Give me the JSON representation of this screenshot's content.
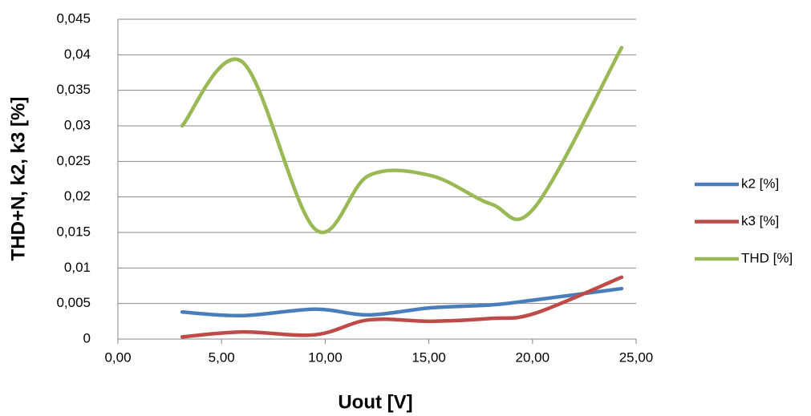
{
  "chart_data": {
    "type": "line",
    "x_label": "Uout [V]",
    "y_label": "THD+N, k2, k3 [%]",
    "x": [
      3.1,
      6.0,
      9.5,
      12.1,
      15.1,
      18.0,
      20.1,
      24.3
    ],
    "series": [
      {
        "name": "k2 [%]",
        "color": "#4a7ebb",
        "values": [
          0.0038,
          0.0033,
          0.0042,
          0.0034,
          0.0044,
          0.0048,
          0.0055,
          0.0071
        ]
      },
      {
        "name": "k3 [%]",
        "color": "#be4b48",
        "values": [
          0.0003,
          0.001,
          0.0006,
          0.0027,
          0.0025,
          0.0029,
          0.0036,
          0.0087
        ]
      },
      {
        "name": "THD [%]",
        "color": "#98b954",
        "values": [
          0.03,
          0.039,
          0.0155,
          0.023,
          0.023,
          0.019,
          0.0185,
          0.041
        ]
      }
    ],
    "xlim": [
      0,
      25
    ],
    "xticks": [
      {
        "value": 0,
        "label": "0,00"
      },
      {
        "value": 5,
        "label": "5,00"
      },
      {
        "value": 10,
        "label": "10,00"
      },
      {
        "value": 15,
        "label": "15,00"
      },
      {
        "value": 20,
        "label": "20,00"
      },
      {
        "value": 25,
        "label": "25,00"
      }
    ],
    "ylim": [
      0,
      0.045
    ],
    "yticks": [
      0,
      {
        "value": 0.005,
        "label": "0,005"
      },
      {
        "value": 0.01,
        "label": "0,01"
      },
      {
        "value": 0.015,
        "label": "0,015"
      },
      {
        "value": 0.02,
        "label": "0,02"
      },
      {
        "value": 0.025,
        "label": "0,025"
      },
      {
        "value": 0.03,
        "label": "0,03"
      },
      {
        "value": 0.035,
        "label": "0,035"
      },
      {
        "value": 0.04,
        "label": "0,04"
      },
      {
        "value": 0.045,
        "label": "0,045"
      }
    ],
    "grid": true,
    "legend": "right",
    "smooth": true
  }
}
